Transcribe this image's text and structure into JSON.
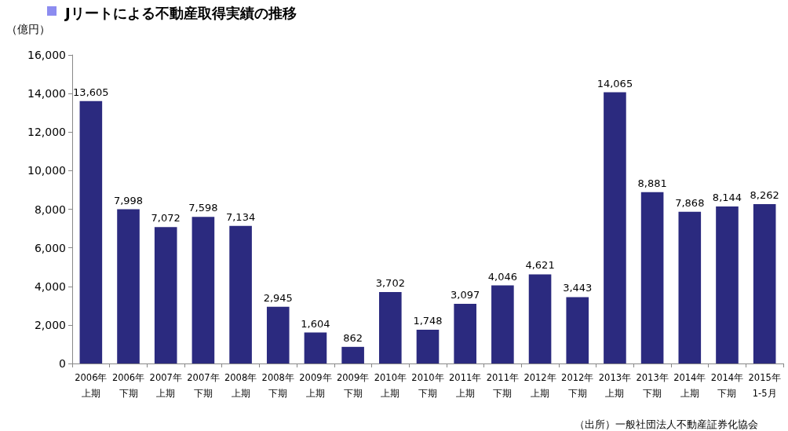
{
  "chart_data": {
    "type": "bar",
    "title": "Jリートによる不動産取得実績の推移",
    "ylabel": "（億円）",
    "categories": [
      "2006年上期",
      "2006年下期",
      "2007年上期",
      "2007年下期",
      "2008年上期",
      "2008年下期",
      "2009年上期",
      "2009年下期",
      "2010年上期",
      "2010年下期",
      "2011年上期",
      "2011年下期",
      "2012年上期",
      "2012年下期",
      "2013年上期",
      "2013年下期",
      "2014年上期",
      "2014年下期",
      "2015年1-5月"
    ],
    "values": [
      13605,
      7998,
      7072,
      7598,
      7134,
      2945,
      1604,
      862,
      3702,
      1748,
      3097,
      4046,
      4621,
      3443,
      14065,
      8881,
      7868,
      8144,
      8262
    ],
    "value_labels": [
      "13,605",
      "7,998",
      "7,072",
      "7,598",
      "7,134",
      "2,945",
      "1,604",
      "862",
      "3,702",
      "1,748",
      "3,097",
      "4,046",
      "4,621",
      "3,443",
      "14,065",
      "8,881",
      "7,868",
      "8,144",
      "8,262"
    ],
    "color": "#2b2a7f",
    "ylim": [
      0,
      16000
    ],
    "yticks": [
      {
        "value": 0,
        "label": "0"
      },
      {
        "value": 2000,
        "label": "2,000"
      },
      {
        "value": 4000,
        "label": "4,000"
      },
      {
        "value": 6000,
        "label": "6,000"
      },
      {
        "value": 8000,
        "label": "8,000"
      },
      {
        "value": 10000,
        "label": "10,000"
      },
      {
        "value": 12000,
        "label": "12,000"
      },
      {
        "value": 14000,
        "label": "14,000"
      },
      {
        "value": 16000,
        "label": "16,000"
      }
    ],
    "annotations": [
      "（出所）一般社団法人不動産証券化協会"
    ]
  }
}
